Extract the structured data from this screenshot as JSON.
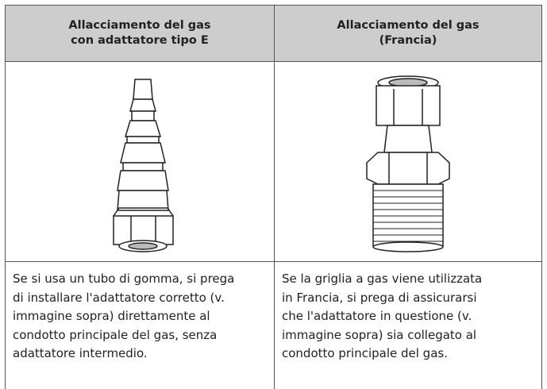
{
  "table": {
    "headers": [
      [
        "Allacciamento del gas",
        "con adattatore tipo E"
      ],
      [
        "Allacciamento del gas",
        "(Francia)"
      ]
    ],
    "rows": [
      [
        [
          "Se si usa un tubo di gomma, si prega",
          "di installare l'adattatore corretto (v.",
          "immagine sopra) direttamente al",
          "condotto principale del gas, senza",
          "adattatore intermedio."
        ],
        [
          "Se la griglia a gas viene utilizzata",
          "in Francia, si prega di assicurarsi",
          "che l'adattatore in questione (v.",
          "immagine sopra) sia collegato al",
          "condotto principale del gas."
        ]
      ]
    ]
  }
}
